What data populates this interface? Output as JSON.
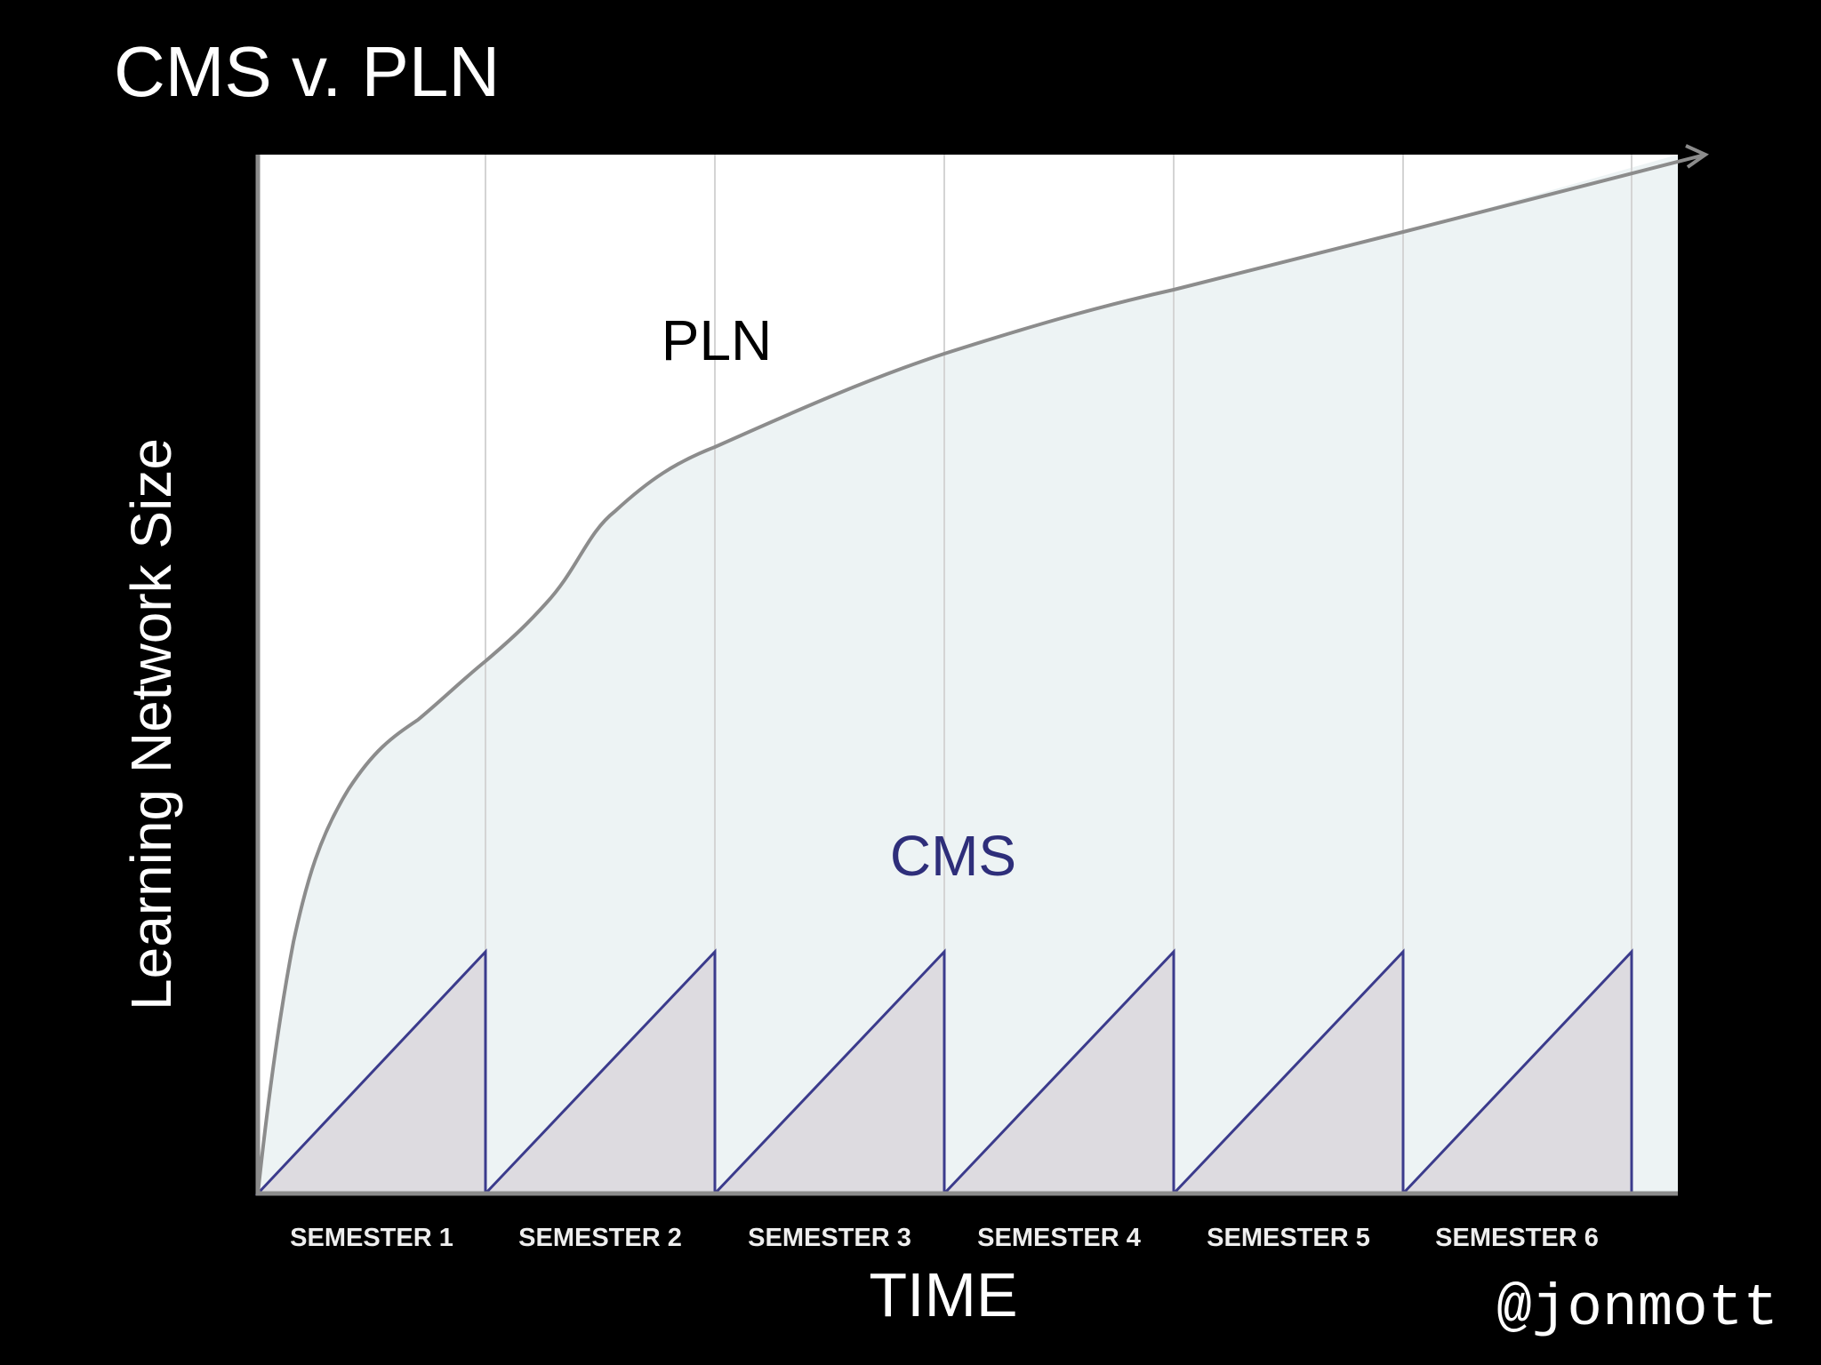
{
  "title": "CMS v. PLN",
  "y_axis_label": "Learning Network Size",
  "x_axis_label": "TIME",
  "categories": [
    "SEMESTER 1",
    "SEMESTER 2",
    "SEMESTER 3",
    "SEMESTER 4",
    "SEMESTER 5",
    "SEMESTER 6"
  ],
  "curve_labels": {
    "pln": "PLN",
    "cms": "CMS"
  },
  "credit": "@jonmott"
}
